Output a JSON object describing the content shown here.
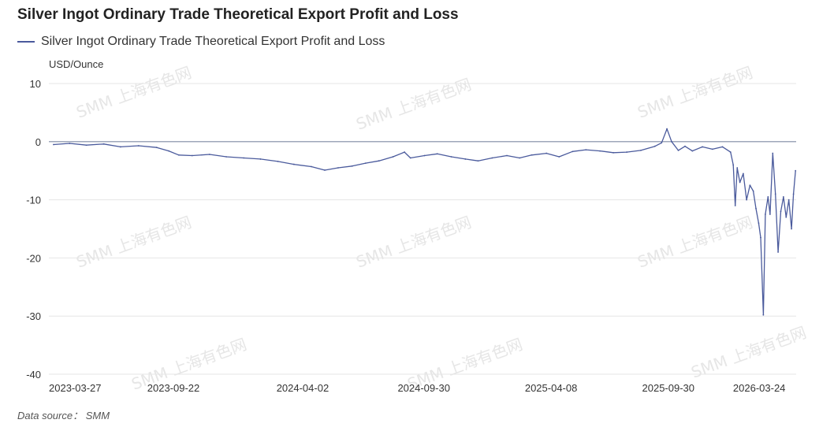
{
  "title": "Silver Ingot Ordinary Trade Theoretical Export Profit and Loss",
  "legend_label": "Silver Ingot Ordinary Trade Theoretical Export Profit and Loss",
  "unit_label": "USD/Ounce",
  "source_text": "Data source： SMM",
  "watermark_text": "SMM 上海有色网",
  "colors": {
    "series": "#4a5a9c",
    "grid": "#e6e6e6",
    "zero_line": "#7f8aa3"
  },
  "chart_data": {
    "type": "line",
    "title": "Silver Ingot Ordinary Trade Theoretical Export Profit and Loss",
    "ylabel": "USD/Ounce",
    "xlabel": "",
    "ylim": [
      -40,
      10
    ],
    "yticks": [
      10,
      0,
      -10,
      -20,
      -30,
      -40
    ],
    "xticks": [
      "2023-03-27",
      "2023-09-22",
      "2024-04-02",
      "2024-09-30",
      "2025-04-08",
      "2025-09-30",
      "2026-03-24"
    ],
    "grid": true,
    "legend": "top-left",
    "series": [
      {
        "name": "Silver Ingot Ordinary Trade Theoretical Export Profit and Loss",
        "points": [
          [
            "2023-03-27",
            -0.5
          ],
          [
            "2023-04-20",
            -0.3
          ],
          [
            "2023-05-15",
            -0.6
          ],
          [
            "2023-06-10",
            -0.4
          ],
          [
            "2023-07-05",
            -0.9
          ],
          [
            "2023-08-01",
            -0.7
          ],
          [
            "2023-08-28",
            -1.0
          ],
          [
            "2023-09-15",
            -1.6
          ],
          [
            "2023-09-30",
            -2.3
          ],
          [
            "2023-10-20",
            -2.4
          ],
          [
            "2023-11-15",
            -2.2
          ],
          [
            "2023-12-10",
            -2.6
          ],
          [
            "2024-01-05",
            -2.8
          ],
          [
            "2024-01-30",
            -3.0
          ],
          [
            "2024-02-25",
            -3.4
          ],
          [
            "2024-03-20",
            -3.9
          ],
          [
            "2024-04-15",
            -4.3
          ],
          [
            "2024-05-05",
            -4.9
          ],
          [
            "2024-05-25",
            -4.5
          ],
          [
            "2024-06-15",
            -4.2
          ],
          [
            "2024-07-05",
            -3.7
          ],
          [
            "2024-07-25",
            -3.3
          ],
          [
            "2024-08-15",
            -2.6
          ],
          [
            "2024-09-01",
            -1.8
          ],
          [
            "2024-09-10",
            -2.8
          ],
          [
            "2024-10-01",
            -2.4
          ],
          [
            "2024-10-20",
            -2.1
          ],
          [
            "2024-11-10",
            -2.6
          ],
          [
            "2024-12-01",
            -3.0
          ],
          [
            "2024-12-20",
            -3.3
          ],
          [
            "2025-01-10",
            -2.8
          ],
          [
            "2025-02-01",
            -2.4
          ],
          [
            "2025-02-20",
            -2.8
          ],
          [
            "2025-03-10",
            -2.3
          ],
          [
            "2025-04-01",
            -2.0
          ],
          [
            "2025-04-20",
            -2.6
          ],
          [
            "2025-05-10",
            -1.7
          ],
          [
            "2025-05-30",
            -1.4
          ],
          [
            "2025-06-20",
            -1.6
          ],
          [
            "2025-07-10",
            -1.9
          ],
          [
            "2025-07-30",
            -1.8
          ],
          [
            "2025-08-20",
            -1.5
          ],
          [
            "2025-09-10",
            -0.8
          ],
          [
            "2025-09-20",
            -0.2
          ],
          [
            "2025-09-28",
            2.2
          ],
          [
            "2025-10-05",
            0.0
          ],
          [
            "2025-10-15",
            -1.5
          ],
          [
            "2025-10-25",
            -0.8
          ],
          [
            "2025-11-05",
            -1.6
          ],
          [
            "2025-11-20",
            -0.9
          ],
          [
            "2025-12-05",
            -1.3
          ],
          [
            "2025-12-20",
            -0.9
          ],
          [
            "2026-01-01",
            -1.8
          ],
          [
            "2026-01-05",
            -4.0
          ],
          [
            "2026-01-08",
            -11.0
          ],
          [
            "2026-01-11",
            -4.5
          ],
          [
            "2026-01-15",
            -7.0
          ],
          [
            "2026-01-20",
            -5.5
          ],
          [
            "2026-01-25",
            -10.0
          ],
          [
            "2026-01-30",
            -7.5
          ],
          [
            "2026-02-04",
            -8.5
          ],
          [
            "2026-02-08",
            -11.5
          ],
          [
            "2026-02-12",
            -14.0
          ],
          [
            "2026-02-15",
            -16.5
          ],
          [
            "2026-02-19",
            -29.8
          ],
          [
            "2026-02-22",
            -12.5
          ],
          [
            "2026-02-26",
            -9.5
          ],
          [
            "2026-03-01",
            -12.5
          ],
          [
            "2026-03-05",
            -2.0
          ],
          [
            "2026-03-09",
            -9.0
          ],
          [
            "2026-03-13",
            -19.0
          ],
          [
            "2026-03-17",
            -12.0
          ],
          [
            "2026-03-21",
            -9.5
          ],
          [
            "2026-03-25",
            -13.0
          ],
          [
            "2026-03-29",
            -10.0
          ],
          [
            "2026-04-02",
            -15.0
          ],
          [
            "2026-04-05",
            -9.0
          ],
          [
            "2026-04-08",
            -5.0
          ]
        ]
      }
    ]
  }
}
